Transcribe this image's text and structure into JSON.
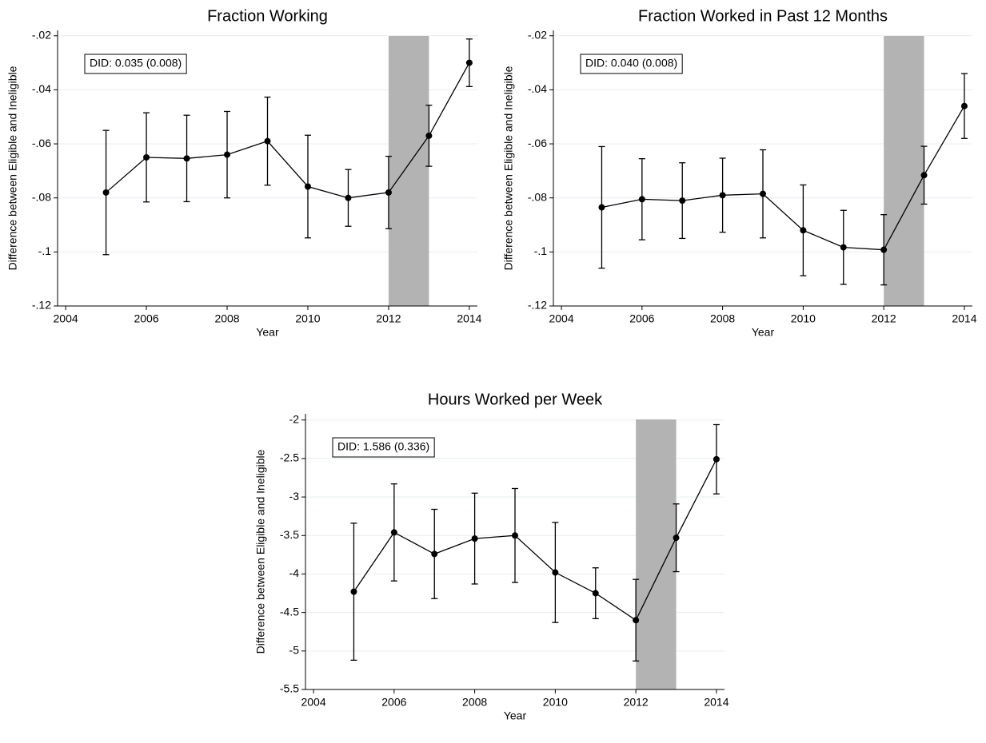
{
  "chart_data": [
    {
      "type": "line",
      "title": "Fraction Working",
      "xlabel": "Year",
      "ylabel": "Difference between Eligible and Ineligible",
      "annotation": "DID: 0.035 (0.008)",
      "color": "#000000",
      "shade": [
        2012,
        2013
      ],
      "shade_color": "#b3b3b3",
      "grid": true,
      "x": [
        2005,
        2006,
        2007,
        2008,
        2009,
        2010,
        2011,
        2012,
        2013,
        2014
      ],
      "values": [
        -0.078,
        -0.065,
        -0.0654,
        -0.064,
        -0.059,
        -0.0758,
        -0.08,
        -0.078,
        -0.057,
        -0.03
      ],
      "errors": [
        0.023,
        0.0165,
        0.016,
        0.016,
        0.0163,
        0.019,
        0.0105,
        0.0134,
        0.0113,
        0.0088
      ],
      "xlim": [
        2003.8,
        2014.2
      ],
      "xticks": [
        2004,
        2006,
        2008,
        2010,
        2012,
        2014
      ],
      "ylim": [
        -0.12,
        -0.018
      ],
      "yticks": [
        {
          "value": -0.12,
          "label": "-.12"
        },
        {
          "value": -0.1,
          "label": "-.1"
        },
        {
          "value": -0.08,
          "label": "-.08"
        },
        {
          "value": -0.06,
          "label": "-.06"
        },
        {
          "value": -0.04,
          "label": "-.04"
        },
        {
          "value": -0.02,
          "label": "-.02"
        }
      ]
    },
    {
      "type": "line",
      "title": "Fraction Worked in Past 12 Months",
      "xlabel": "Year",
      "ylabel": "Difference between Eligible and Ineligible",
      "annotation": "DID: 0.040 (0.008)",
      "color": "#000000",
      "shade": [
        2012,
        2013
      ],
      "shade_color": "#b3b3b3",
      "grid": true,
      "x": [
        2005,
        2006,
        2007,
        2008,
        2009,
        2010,
        2011,
        2012,
        2013,
        2014
      ],
      "values": [
        -0.0835,
        -0.0805,
        -0.081,
        -0.079,
        -0.0785,
        -0.092,
        -0.0983,
        -0.0992,
        -0.0716,
        -0.046
      ],
      "errors": [
        0.0225,
        0.015,
        0.014,
        0.0137,
        0.0163,
        0.0168,
        0.0137,
        0.013,
        0.0107,
        0.012
      ],
      "xlim": [
        2003.8,
        2014.2
      ],
      "xticks": [
        2004,
        2006,
        2008,
        2010,
        2012,
        2014
      ],
      "ylim": [
        -0.12,
        -0.018
      ],
      "yticks": [
        {
          "value": -0.12,
          "label": "-.12"
        },
        {
          "value": -0.1,
          "label": "-.1"
        },
        {
          "value": -0.08,
          "label": "-.08"
        },
        {
          "value": -0.06,
          "label": "-.06"
        },
        {
          "value": -0.04,
          "label": "-.04"
        },
        {
          "value": -0.02,
          "label": "-.02"
        }
      ]
    },
    {
      "type": "line",
      "title": "Hours Worked per Week",
      "xlabel": "Year",
      "ylabel": "Difference between Eligible and Ineligible",
      "annotation": "DID: 1.586 (0.336)",
      "color": "#000000",
      "shade": [
        2012,
        2013
      ],
      "shade_color": "#b3b3b3",
      "grid": true,
      "x": [
        2005,
        2006,
        2007,
        2008,
        2009,
        2010,
        2011,
        2012,
        2013,
        2014
      ],
      "values": [
        -4.23,
        -3.46,
        -3.74,
        -3.54,
        -3.5,
        -3.98,
        -4.25,
        -4.6,
        -3.53,
        -2.51
      ],
      "errors": [
        0.89,
        0.63,
        0.58,
        0.59,
        0.61,
        0.65,
        0.33,
        0.53,
        0.44,
        0.45
      ],
      "xlim": [
        2003.8,
        2014.2
      ],
      "xticks": [
        2004,
        2006,
        2008,
        2010,
        2012,
        2014
      ],
      "ylim": [
        -5.5,
        -1.92
      ],
      "yticks": [
        -5.5,
        -5,
        -4.5,
        -4,
        -3.5,
        -3,
        -2.5,
        -2
      ]
    }
  ]
}
